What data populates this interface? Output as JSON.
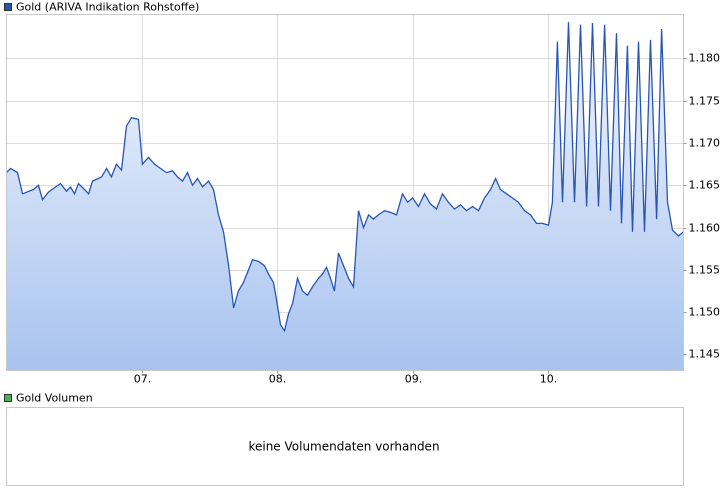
{
  "chart_data": [
    {
      "type": "line",
      "series": [
        {
          "name": "Gold (ARIVA Indikation Rohstoffe)",
          "color": "#2855b5",
          "values": [
            1.1665,
            1.167,
            1.1665,
            1.164,
            1.1645,
            1.165,
            1.1633,
            1.1642,
            1.1648,
            1.1652,
            1.1643,
            1.1648,
            1.164,
            1.1652,
            1.1645,
            1.164,
            1.1655,
            1.1657,
            1.166,
            1.167,
            1.166,
            1.1675,
            1.1668,
            1.172,
            1.173,
            1.1728,
            1.1675,
            1.1683,
            1.1675,
            1.167,
            1.1665,
            1.1667,
            1.166,
            1.1655,
            1.1665,
            1.165,
            1.1658,
            1.1648,
            1.1655,
            1.1645,
            1.1615,
            1.1595,
            1.1555,
            1.1505,
            1.1525,
            1.1535,
            1.155,
            1.1562,
            1.156,
            1.1555,
            1.1545,
            1.1535,
            1.1515,
            1.1485,
            1.1478,
            1.1498,
            1.151,
            1.154,
            1.1525,
            1.152,
            1.153,
            1.154,
            1.1545,
            1.1553,
            1.154,
            1.1525,
            1.157,
            1.1555,
            1.154,
            1.153,
            1.162,
            1.16,
            1.1615,
            1.161,
            1.1615,
            1.162,
            1.1618,
            1.1615,
            1.164,
            1.163,
            1.1635,
            1.1625,
            1.164,
            1.1628,
            1.1622,
            1.164,
            1.163,
            1.1622,
            1.1627,
            1.162,
            1.1625,
            1.162,
            1.1635,
            1.1645,
            1.1658,
            1.1645,
            1.164,
            1.1635,
            1.163,
            1.162,
            1.1615,
            1.1605,
            1.1605,
            1.1603,
            1.163,
            1.182,
            1.163,
            1.1843,
            1.163,
            1.184,
            1.1625,
            1.1842,
            1.1625,
            1.184,
            1.162,
            1.183,
            1.1605,
            1.1815,
            1.1595,
            1.182,
            1.1595,
            1.1822,
            1.161,
            1.1835,
            1.163,
            1.1597,
            1.159,
            1.1595
          ]
        }
      ],
      "x": [
        0,
        0.03,
        0.081,
        0.118,
        0.199,
        0.236,
        0.266,
        0.31,
        0.362,
        0.399,
        0.443,
        0.473,
        0.502,
        0.532,
        0.576,
        0.606,
        0.635,
        0.665,
        0.702,
        0.739,
        0.775,
        0.812,
        0.849,
        0.886,
        0.923,
        0.975,
        1.004,
        1.049,
        1.093,
        1.137,
        1.182,
        1.226,
        1.263,
        1.3,
        1.337,
        1.374,
        1.411,
        1.448,
        1.492,
        1.529,
        1.566,
        1.603,
        1.64,
        1.677,
        1.713,
        1.75,
        1.787,
        1.817,
        1.861,
        1.905,
        1.935,
        1.972,
        1.994,
        2.024,
        2.053,
        2.083,
        2.112,
        2.149,
        2.186,
        2.223,
        2.26,
        2.304,
        2.334,
        2.363,
        2.393,
        2.422,
        2.452,
        2.489,
        2.526,
        2.563,
        2.6,
        2.637,
        2.674,
        2.71,
        2.747,
        2.792,
        2.836,
        2.88,
        2.925,
        2.962,
        2.999,
        3.043,
        3.087,
        3.131,
        3.176,
        3.22,
        3.264,
        3.309,
        3.353,
        3.397,
        3.442,
        3.486,
        3.53,
        3.575,
        3.612,
        3.648,
        3.693,
        3.737,
        3.781,
        3.826,
        3.87,
        3.914,
        3.959,
        4.003,
        4.032,
        4.069,
        4.106,
        4.151,
        4.195,
        4.239,
        4.284,
        4.328,
        4.372,
        4.417,
        4.461,
        4.505,
        4.542,
        4.586,
        4.623,
        4.668,
        4.712,
        4.756,
        4.801,
        4.838,
        4.882,
        4.919,
        4.963,
        5
      ],
      "xlim": [
        0,
        5
      ],
      "xticks": [
        {
          "value": 1,
          "label": "07."
        },
        {
          "value": 2,
          "label": "08."
        },
        {
          "value": 3,
          "label": "09."
        },
        {
          "value": 4,
          "label": "10."
        }
      ],
      "ylim": [
        1.1431,
        1.1852
      ],
      "yticks": [
        1.145,
        {
          "value": 1.15,
          "label": "1.150"
        },
        1.155,
        {
          "value": 1.16,
          "label": "1.160"
        },
        1.165,
        {
          "value": 1.17,
          "label": "1.170"
        },
        1.175,
        {
          "value": 1.18,
          "label": "1.180"
        }
      ],
      "grid": true
    },
    {
      "type": "bar",
      "series": [
        {
          "name": "Gold Volumen",
          "color": "#4caf50"
        }
      ],
      "annotation": "keine Volumendaten vorhanden"
    }
  ]
}
